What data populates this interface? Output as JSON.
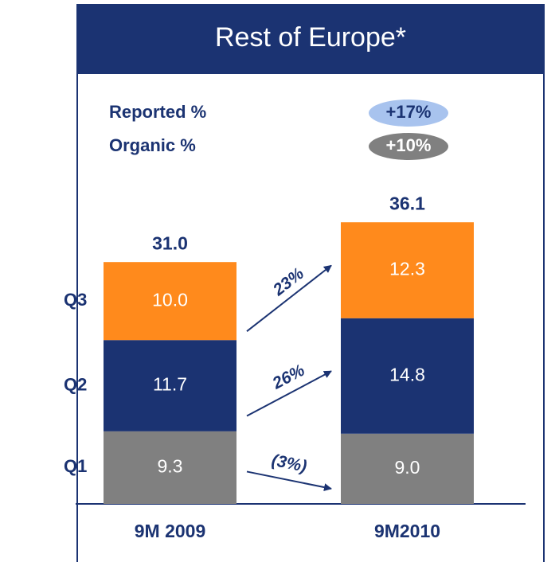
{
  "chart_data": {
    "type": "stacked_bar",
    "title": "Rest of Europe*",
    "categories": [
      "9M 2009",
      "9M2010"
    ],
    "series": [
      {
        "name": "Q1",
        "color": "#808080",
        "values": [
          9.3,
          9.0
        ],
        "value_labels": [
          "9.3",
          "9.0"
        ],
        "growth_label": "(3%)"
      },
      {
        "name": "Q2",
        "color": "#1b3372",
        "values": [
          11.7,
          14.8
        ],
        "value_labels": [
          "11.7",
          "14.8"
        ],
        "growth_label": "26%"
      },
      {
        "name": "Q3",
        "color": "#ff8a1c",
        "values": [
          10.0,
          12.3
        ],
        "value_labels": [
          "10.0",
          "12.3"
        ],
        "growth_label": "23%"
      }
    ],
    "totals": [
      31.0,
      36.1
    ],
    "total_labels": [
      "31.0",
      "36.1"
    ],
    "growth_summary": [
      {
        "label": "Reported %",
        "value": 17,
        "value_label": "+17%",
        "color": "#a8c3ee",
        "text_color": "#1b3372"
      },
      {
        "label": "Organic %",
        "value": 10,
        "value_label": "+10%",
        "color": "#808080",
        "text_color": "#ffffff"
      }
    ]
  }
}
